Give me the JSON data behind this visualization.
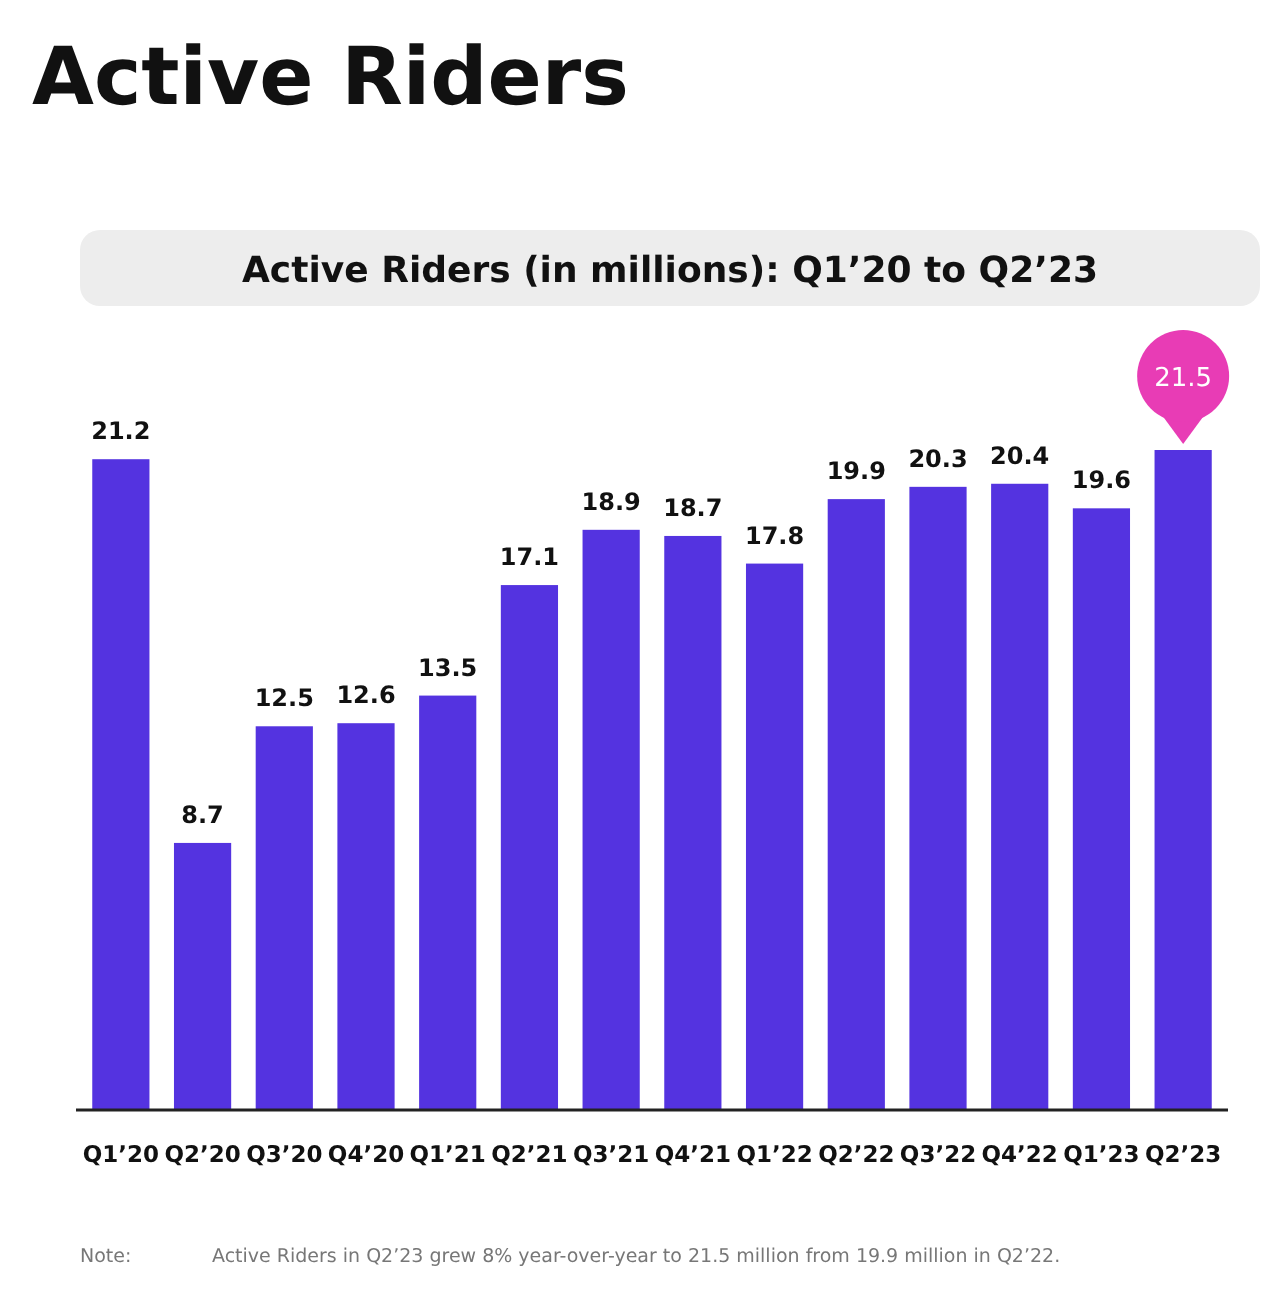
{
  "chart_data": {
    "type": "bar",
    "title": "Active Riders",
    "subtitle": "Active Riders (in millions): Q1’20 to Q2’23",
    "categories": [
      "Q1’20",
      "Q2’20",
      "Q3’20",
      "Q4’20",
      "Q1’21",
      "Q2’21",
      "Q3’21",
      "Q4’21",
      "Q1’22",
      "Q2’22",
      "Q3’22",
      "Q4’22",
      "Q1’23",
      "Q2’23"
    ],
    "values": [
      21.2,
      8.7,
      12.5,
      12.6,
      13.5,
      17.1,
      18.9,
      18.7,
      17.8,
      19.9,
      20.3,
      20.4,
      19.6,
      21.5
    ],
    "color": "#5433e0",
    "value_labels": [
      "21.2",
      "8.7",
      "12.5",
      "12.6",
      "13.5",
      "17.1",
      "18.9",
      "18.7",
      "17.8",
      "19.9",
      "20.3",
      "20.4",
      "19.6",
      "21.5"
    ],
    "annotations": [
      "Note:",
      "Active Riders in Q2’23 grew 8% year-over-year to 21.5 million from 19.9 million in Q2’22."
    ]
  }
}
